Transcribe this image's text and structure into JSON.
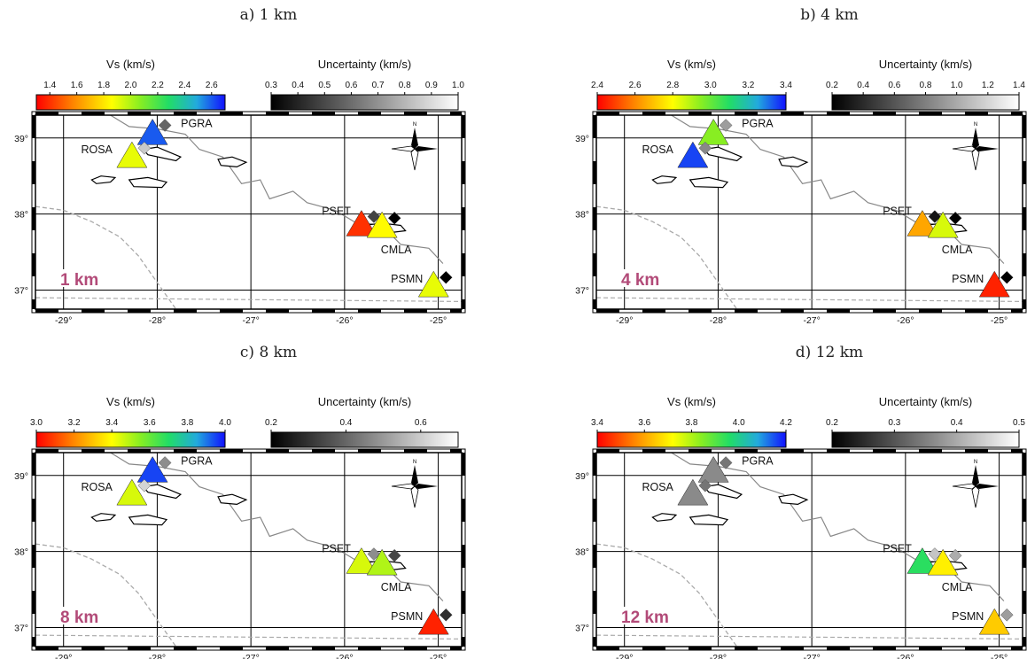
{
  "colors": {
    "depth_label": "#b24a78",
    "grid": "#000000",
    "coast": "#888888",
    "plate_boundary": "#aaaaaa"
  },
  "map": {
    "lon_range": [
      -29.3,
      -24.75
    ],
    "lat_range": [
      36.75,
      39.3
    ],
    "lon_ticks": [
      "-29°",
      "-28°",
      "-27°",
      "-26°",
      "-25°"
    ],
    "lat_ticks": [
      "39°",
      "38°",
      "37°"
    ],
    "north_label": "N",
    "stations": [
      {
        "name": "PGRA",
        "lon": -28.05,
        "lat": 39.05
      },
      {
        "name": "ROSA",
        "lon": -28.27,
        "lat": 38.75
      },
      {
        "name": "PSET",
        "lon": -25.82,
        "lat": 37.85
      },
      {
        "name": "CMLA",
        "lon": -25.6,
        "lat": 37.83
      },
      {
        "name": "PSMN",
        "lon": -25.05,
        "lat": 37.05
      }
    ]
  },
  "panels": [
    {
      "title": "a) 1 km",
      "depth_label": "1 km",
      "vs_title": "Vs (km/s)",
      "vs_ticks": [
        "1.4",
        "1.6",
        "1.8",
        "2.0",
        "2.2",
        "2.4",
        "2.6"
      ],
      "vs_range": [
        1.3,
        2.7
      ],
      "unc_title": "Uncertainty (km/s)",
      "unc_ticks": [
        "0.3",
        "0.4",
        "0.5",
        "0.6",
        "0.7",
        "0.8",
        "0.9",
        "1.0"
      ],
      "unc_range": [
        0.3,
        1.0
      ],
      "stations": [
        {
          "name": "PGRA",
          "vs": 2.6,
          "unc": 0.6
        },
        {
          "name": "ROSA",
          "vs": 1.9,
          "unc": 0.9
        },
        {
          "name": "PSET",
          "vs": 1.4,
          "unc": 0.5
        },
        {
          "name": "CMLA",
          "vs": 1.85,
          "unc": 0.3
        },
        {
          "name": "PSMN",
          "vs": 1.9,
          "unc": 0.3
        }
      ]
    },
    {
      "title": "b) 4 km",
      "depth_label": "4 km",
      "vs_title": "Vs (km/s)",
      "vs_ticks": [
        "2.4",
        "2.6",
        "2.8",
        "3.0",
        "3.2",
        "3.4"
      ],
      "vs_range": [
        2.4,
        3.4
      ],
      "unc_title": "Uncertainty (km/s)",
      "unc_ticks": [
        "0.2",
        "0.4",
        "0.6",
        "0.8",
        "1.0",
        "1.2",
        "1.4"
      ],
      "unc_range": [
        0.2,
        1.4
      ],
      "stations": [
        {
          "name": "PGRA",
          "vs": 2.95,
          "unc": 1.0
        },
        {
          "name": "ROSA",
          "vs": 3.35,
          "unc": 0.9
        },
        {
          "name": "PSET",
          "vs": 2.65,
          "unc": 0.3
        },
        {
          "name": "CMLA",
          "vs": 2.85,
          "unc": 0.2
        },
        {
          "name": "PSMN",
          "vs": 2.45,
          "unc": 0.2
        }
      ]
    },
    {
      "title": "c) 8 km",
      "depth_label": "8 km",
      "vs_title": "Vs (km/s)",
      "vs_ticks": [
        "3.0",
        "3.2",
        "3.4",
        "3.6",
        "3.8",
        "4.0"
      ],
      "vs_range": [
        3.0,
        4.0
      ],
      "unc_title": "Uncertainty (km/s)",
      "unc_ticks": [
        "0.2",
        "0.4",
        "0.6"
      ],
      "unc_range": [
        0.2,
        0.7
      ],
      "stations": [
        {
          "name": "PGRA",
          "vs": 3.95,
          "unc": 0.5
        },
        {
          "name": "ROSA",
          "vs": 3.45,
          "unc": 0.65
        },
        {
          "name": "PSET",
          "vs": 3.45,
          "unc": 0.5
        },
        {
          "name": "CMLA",
          "vs": 3.5,
          "unc": 0.35
        },
        {
          "name": "PSMN",
          "vs": 3.05,
          "unc": 0.3
        }
      ]
    },
    {
      "title": "d) 12 km",
      "depth_label": "12 km",
      "vs_title": "Vs (km/s)",
      "vs_ticks": [
        "3.4",
        "3.6",
        "3.8",
        "4.0",
        "4.2"
      ],
      "vs_range": [
        3.4,
        4.2
      ],
      "unc_title": "Uncertainty (km/s)",
      "unc_ticks": [
        "0.2",
        "0.3",
        "0.4",
        "0.5"
      ],
      "unc_range": [
        0.2,
        0.5
      ],
      "stations": [
        {
          "name": "PGRA",
          "vs": null,
          "unc": 0.35
        },
        {
          "name": "ROSA",
          "vs": null,
          "unc": 0.35
        },
        {
          "name": "PSET",
          "vs": 3.95,
          "unc": 0.45
        },
        {
          "name": "CMLA",
          "vs": 3.7,
          "unc": 0.42
        },
        {
          "name": "PSMN",
          "vs": 3.65,
          "unc": 0.4
        }
      ]
    }
  ]
}
